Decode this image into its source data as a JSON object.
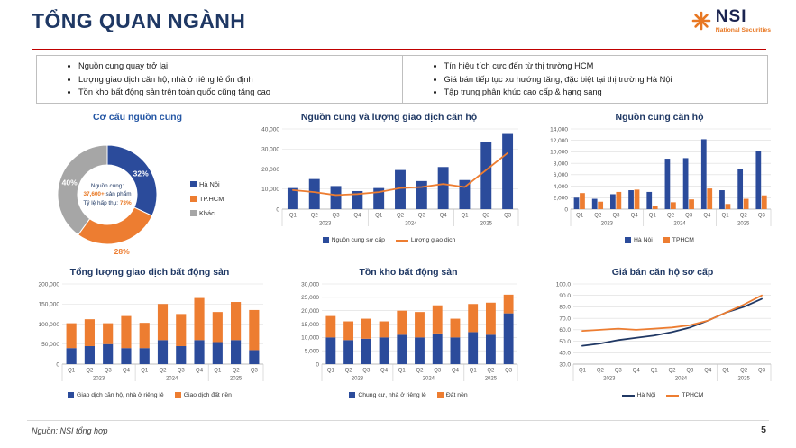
{
  "header": {
    "title": "TỔNG QUAN NGÀNH",
    "logo_text": "NSI",
    "logo_subtext": "National Securities"
  },
  "highlights": {
    "left": [
      "Nguồn cung quay trở lại",
      "Lượng giao dịch căn hộ, nhà ở riêng lẻ ổn định",
      "Tồn kho bất động sản trên toàn quốc cũng tăng cao"
    ],
    "right": [
      "Tín hiệu tích cực đến từ thị trường HCM",
      "Giá bán tiếp tục xu hướng tăng, đặc biệt tại thị trường Hà Nội",
      "Tập trung phân khúc cao cấp & hạng sang"
    ]
  },
  "footer": {
    "source": "Nguồn: NSI tổng hợp",
    "page": "5"
  },
  "colors": {
    "navy": "#1F3864",
    "blue": "#2B4B9B",
    "orange": "#ED7D31",
    "gray": "#A6A6A6",
    "red": "#C00000"
  },
  "chart_data": [
    {
      "type": "pie",
      "title": "Cơ cấu nguồn cung",
      "labels": [
        "Hà Nội",
        "TP.HCM",
        "Khác"
      ],
      "values": [
        32,
        28,
        40
      ],
      "colors": [
        "#2B4B9B",
        "#ED7D31",
        "#A6A6A6"
      ],
      "slice_labels": [
        "32%",
        "28%",
        "40%"
      ],
      "label_placement": [
        "inside",
        "outside",
        "inside"
      ],
      "center": {
        "label": "Nguồn cung:",
        "value": "37,600+",
        "value_suffix": " sản phẩm",
        "rate_label": "Tỷ lệ hấp thụ: ",
        "rate_value": "73%"
      }
    },
    {
      "type": "bar",
      "title": "Nguồn cung và lượng giao dịch căn hộ",
      "categories": [
        "Q1",
        "Q2",
        "Q3",
        "Q4",
        "Q1",
        "Q2",
        "Q3",
        "Q4",
        "Q1",
        "Q2",
        "Q3"
      ],
      "year_groups": [
        {
          "label": "2023",
          "count": 4
        },
        {
          "label": "2024",
          "count": 4
        },
        {
          "label": "2025",
          "count": 3
        }
      ],
      "series": [
        {
          "name": "Nguồn cung sơ cấp",
          "type": "bar",
          "color": "#2B4B9B",
          "values": [
            10500,
            15000,
            11500,
            9000,
            10500,
            19500,
            14000,
            21000,
            14500,
            33500,
            37500
          ]
        },
        {
          "name": "Lượng giao dịch",
          "type": "line",
          "color": "#ED7D31",
          "values": [
            9500,
            8500,
            7000,
            7500,
            8500,
            10500,
            11000,
            12500,
            11000,
            19500,
            28000
          ]
        }
      ],
      "ylim": [
        0,
        40000
      ],
      "ytick": 10000,
      "grid": true,
      "legend_position": "bottom"
    },
    {
      "type": "bar",
      "title": "Nguồn cung căn hộ",
      "grouped": true,
      "categories": [
        "Q1",
        "Q2",
        "Q3",
        "Q4",
        "Q1",
        "Q2",
        "Q3",
        "Q4",
        "Q1",
        "Q2",
        "Q3"
      ],
      "year_groups": [
        {
          "label": "2023",
          "count": 4
        },
        {
          "label": "2024",
          "count": 4
        },
        {
          "label": "2025",
          "count": 3
        }
      ],
      "series": [
        {
          "name": "Hà Nội",
          "type": "bar",
          "color": "#2B4B9B",
          "values": [
            2000,
            1800,
            2600,
            3300,
            3000,
            8800,
            8900,
            12200,
            3300,
            7000,
            10200
          ]
        },
        {
          "name": "TPHCM",
          "type": "bar",
          "color": "#ED7D31",
          "values": [
            2800,
            1300,
            3000,
            3400,
            600,
            1200,
            1700,
            3600,
            900,
            1800,
            2400
          ]
        }
      ],
      "ylim": [
        0,
        14000
      ],
      "ytick": 2000,
      "grid": true,
      "legend_position": "bottom"
    },
    {
      "type": "bar",
      "title": "Tổng lượng giao dịch bất động sản",
      "stacked": true,
      "categories": [
        "Q1",
        "Q2",
        "Q3",
        "Q4",
        "Q1",
        "Q2",
        "Q3",
        "Q4",
        "Q1",
        "Q2",
        "Q3"
      ],
      "year_groups": [
        {
          "label": "2023",
          "count": 4
        },
        {
          "label": "2024",
          "count": 4
        },
        {
          "label": "2025",
          "count": 3
        }
      ],
      "series": [
        {
          "name": "Giao dịch căn hộ, nhà ở riêng lẻ",
          "type": "bar",
          "color": "#2B4B9B",
          "values": [
            40000,
            45000,
            50000,
            40000,
            40000,
            60000,
            45000,
            60000,
            55000,
            60000,
            35000
          ]
        },
        {
          "name": "Giao dịch đất nền",
          "type": "bar",
          "color": "#ED7D31",
          "values": [
            62000,
            67000,
            52000,
            80000,
            63000,
            90000,
            80000,
            105000,
            75000,
            95000,
            100000
          ]
        }
      ],
      "ylim": [
        0,
        200000
      ],
      "ytick": 50000,
      "grid": true,
      "legend_position": "bottom"
    },
    {
      "type": "bar",
      "title": "Tồn kho bất động sản",
      "stacked": true,
      "categories": [
        "Q1",
        "Q2",
        "Q3",
        "Q4",
        "Q1",
        "Q2",
        "Q3",
        "Q4",
        "Q1",
        "Q2",
        "Q3"
      ],
      "year_groups": [
        {
          "label": "2023",
          "count": 4
        },
        {
          "label": "2024",
          "count": 4
        },
        {
          "label": "2025",
          "count": 3
        }
      ],
      "series": [
        {
          "name": "Chung cư, nhà ở riêng lẻ",
          "type": "bar",
          "color": "#2B4B9B",
          "values": [
            10000,
            9000,
            9500,
            10000,
            11000,
            10000,
            11500,
            10000,
            12000,
            11000,
            19000
          ]
        },
        {
          "name": "Đất nền",
          "type": "bar",
          "color": "#ED7D31",
          "values": [
            8000,
            7000,
            7500,
            6000,
            9000,
            9500,
            10500,
            7000,
            10500,
            12000,
            7000
          ]
        }
      ],
      "ylim": [
        0,
        30000
      ],
      "ytick": 5000,
      "grid": true,
      "legend_position": "bottom"
    },
    {
      "type": "line",
      "title": "Giá bán căn hộ sơ cấp",
      "categories": [
        "Q1",
        "Q2",
        "Q3",
        "Q4",
        "Q1",
        "Q2",
        "Q3",
        "Q4",
        "Q1",
        "Q2",
        "Q3"
      ],
      "year_groups": [
        {
          "label": "2023",
          "count": 4
        },
        {
          "label": "2024",
          "count": 4
        },
        {
          "label": "2025",
          "count": 3
        }
      ],
      "series": [
        {
          "name": "Hà Nội",
          "type": "line",
          "color": "#203864",
          "values": [
            46,
            48,
            51,
            53,
            55,
            58,
            62,
            68,
            75,
            80,
            87
          ]
        },
        {
          "name": "TPHCM",
          "type": "line",
          "color": "#ED7D31",
          "values": [
            59,
            60,
            61,
            60,
            61,
            62,
            64,
            68,
            75,
            82,
            90
          ]
        }
      ],
      "ylim": [
        30,
        100
      ],
      "ytick": 10,
      "yformat": "dec1",
      "grid": true,
      "legend_position": "bottom"
    }
  ]
}
